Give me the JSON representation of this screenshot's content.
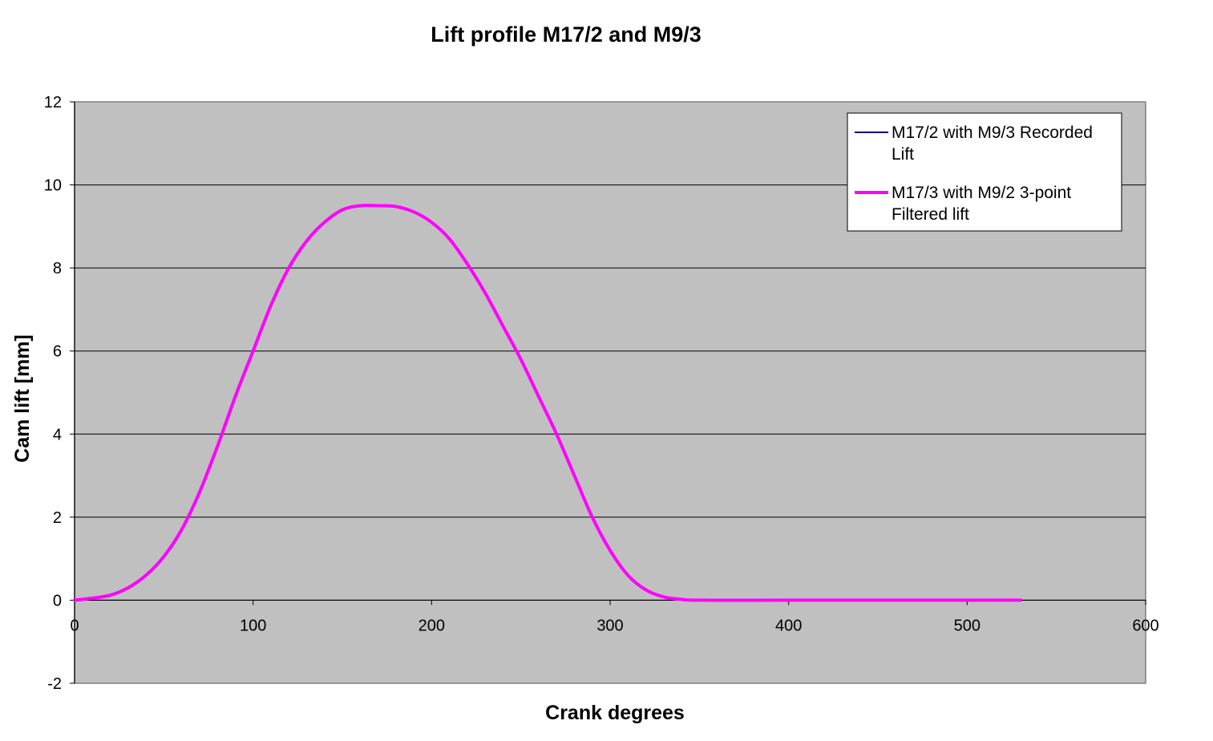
{
  "chart_data": {
    "type": "line",
    "title": "Lift profile M17/2 and M9/3",
    "xlabel": "Crank degrees",
    "ylabel": "Cam lift [mm]",
    "xlim": [
      0,
      600
    ],
    "ylim": [
      -2,
      12
    ],
    "x_ticks": [
      "0",
      "100",
      "200",
      "300",
      "400",
      "500",
      "600"
    ],
    "y_ticks": [
      "-2",
      "0",
      "2",
      "4",
      "6",
      "8",
      "10",
      "12"
    ],
    "grid": "horizontal",
    "plot_background": "#c0c0c0",
    "legend_position": "top-right",
    "legend": [
      {
        "line1": "M17/2 with M9/3 Recorded",
        "line2": "Lift",
        "color": "#000080"
      },
      {
        "line1": "M17/3 with M9/2  3-point",
        "line2": "Filtered lift",
        "color": "#ff00ff"
      }
    ],
    "series": [
      {
        "name": "M17/2 with M9/3 Recorded Lift",
        "color": "#000080",
        "x": [
          0,
          10,
          20,
          30,
          40,
          50,
          60,
          70,
          80,
          90,
          100,
          110,
          120,
          130,
          140,
          150,
          160,
          170,
          180,
          190,
          200,
          210,
          220,
          230,
          240,
          250,
          260,
          270,
          280,
          290,
          300,
          310,
          320,
          330,
          340,
          350,
          400,
          450,
          500,
          530
        ],
        "y": [
          0.0,
          0.05,
          0.12,
          0.3,
          0.6,
          1.05,
          1.7,
          2.6,
          3.7,
          4.9,
          6.0,
          7.1,
          8.0,
          8.65,
          9.1,
          9.4,
          9.5,
          9.5,
          9.48,
          9.35,
          9.1,
          8.7,
          8.1,
          7.4,
          6.6,
          5.8,
          4.9,
          4.0,
          3.0,
          2.0,
          1.2,
          0.6,
          0.25,
          0.08,
          0.02,
          0.0,
          0.0,
          0.0,
          0.0,
          0.0
        ]
      },
      {
        "name": "M17/3 with M9/2  3-point Filtered lift",
        "color": "#ff00ff",
        "x": [
          0,
          10,
          20,
          30,
          40,
          50,
          60,
          70,
          80,
          90,
          100,
          110,
          120,
          130,
          140,
          150,
          160,
          170,
          180,
          190,
          200,
          210,
          220,
          230,
          240,
          250,
          260,
          270,
          280,
          290,
          300,
          310,
          320,
          330,
          340,
          350,
          400,
          450,
          500,
          530
        ],
        "y": [
          0.0,
          0.05,
          0.12,
          0.3,
          0.6,
          1.05,
          1.7,
          2.6,
          3.7,
          4.9,
          6.0,
          7.1,
          8.0,
          8.65,
          9.1,
          9.4,
          9.5,
          9.5,
          9.48,
          9.35,
          9.1,
          8.7,
          8.1,
          7.4,
          6.6,
          5.8,
          4.9,
          4.0,
          3.0,
          2.0,
          1.2,
          0.6,
          0.25,
          0.08,
          0.02,
          0.0,
          0.0,
          0.0,
          0.0,
          0.0
        ]
      }
    ]
  }
}
